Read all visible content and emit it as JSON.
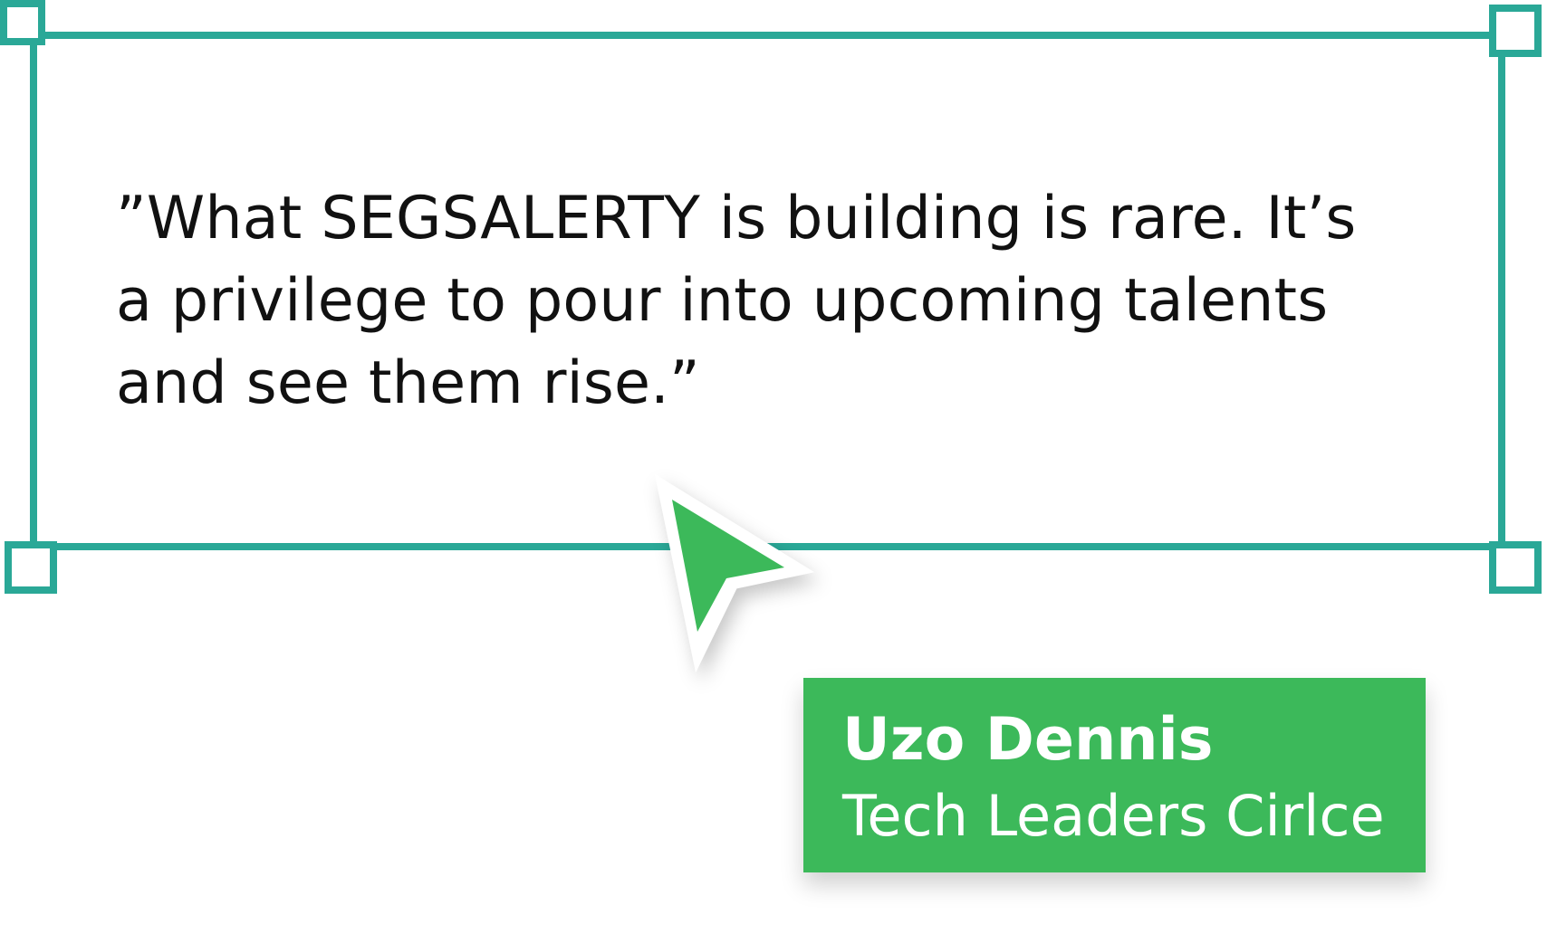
{
  "quote": {
    "lines": [
      "”What SEGSALERTY is building is rare. It’s",
      "a privilege to pour into upcoming talents",
      "and see them rise.”"
    ]
  },
  "attribution": {
    "name": "Uzo Dennis",
    "organization": "Tech Leaders Cirlce"
  },
  "colors": {
    "frame": "#2aa897",
    "card": "#3cb95a",
    "cursor_fill": "#3cb95a",
    "text": "#111111"
  },
  "icons": {
    "cursor": "pointer-arrow-icon"
  }
}
